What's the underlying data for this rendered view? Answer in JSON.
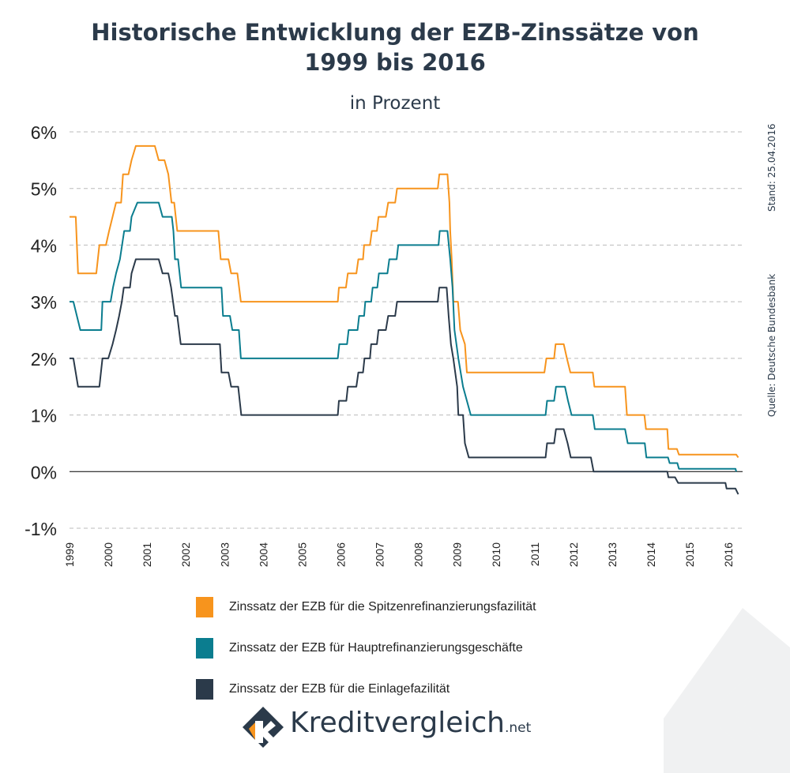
{
  "title_line1": "Historische Entwicklung der EZB-Zinssätze von",
  "title_line2": "1999 bis 2016",
  "subtitle": "in Prozent",
  "date_note": "Stand: 25.04.2016",
  "source_note": "Quelle: Deutsche Bundesbank",
  "logo_text": "Kreditvergleich",
  "logo_suffix": ".net",
  "colors": {
    "spitzen": "#f7941d",
    "haupt": "#0b7d8f",
    "einlage": "#2b3a4a",
    "grid": "#bbbbbb",
    "zero": "#000000"
  },
  "chart_data": {
    "type": "line",
    "ylim": [
      -1,
      6
    ],
    "xlim": [
      1999,
      2016.3
    ],
    "yticks": [
      -1,
      0,
      1,
      2,
      3,
      4,
      5,
      6
    ],
    "ytick_labels": [
      "-1%",
      "0%",
      "1%",
      "2%",
      "3%",
      "4%",
      "5%",
      "6%"
    ],
    "xticks": [
      1999,
      2000,
      2001,
      2002,
      2003,
      2004,
      2005,
      2006,
      2007,
      2008,
      2009,
      2010,
      2011,
      2012,
      2013,
      2014,
      2015,
      2016
    ],
    "xtick_labels": [
      "1999",
      "2000",
      "2001",
      "2002",
      "2003",
      "2004",
      "2005",
      "2006",
      "2007",
      "2008",
      "2009",
      "2010",
      "2011",
      "2012",
      "2013",
      "2014",
      "2015",
      "2016"
    ],
    "grid": "horizontal dashed",
    "legend_position": "bottom",
    "series": [
      {
        "name": "Zinssatz der EZB für die Spitzenrefinanzierungsfazilität",
        "key": "spitzen",
        "points": [
          [
            1999.0,
            4.5
          ],
          [
            1999.16,
            4.5
          ],
          [
            1999.22,
            3.5
          ],
          [
            1999.69,
            3.5
          ],
          [
            1999.77,
            4.0
          ],
          [
            1999.94,
            4.0
          ],
          [
            2000.02,
            4.25
          ],
          [
            2000.11,
            4.5
          ],
          [
            2000.2,
            4.75
          ],
          [
            2000.33,
            4.75
          ],
          [
            2000.38,
            5.25
          ],
          [
            2000.52,
            5.25
          ],
          [
            2000.6,
            5.5
          ],
          [
            2000.71,
            5.75
          ],
          [
            2001.2,
            5.75
          ],
          [
            2001.3,
            5.5
          ],
          [
            2001.45,
            5.5
          ],
          [
            2001.55,
            5.25
          ],
          [
            2001.63,
            4.75
          ],
          [
            2001.7,
            4.75
          ],
          [
            2001.78,
            4.25
          ],
          [
            2002.84,
            4.25
          ],
          [
            2002.9,
            3.75
          ],
          [
            2003.1,
            3.75
          ],
          [
            2003.17,
            3.5
          ],
          [
            2003.33,
            3.5
          ],
          [
            2003.42,
            3.0
          ],
          [
            2005.92,
            3.0
          ],
          [
            2005.95,
            3.25
          ],
          [
            2006.13,
            3.25
          ],
          [
            2006.18,
            3.5
          ],
          [
            2006.4,
            3.5
          ],
          [
            2006.45,
            3.75
          ],
          [
            2006.57,
            3.75
          ],
          [
            2006.6,
            4.0
          ],
          [
            2006.75,
            4.0
          ],
          [
            2006.8,
            4.25
          ],
          [
            2006.93,
            4.25
          ],
          [
            2006.97,
            4.5
          ],
          [
            2007.16,
            4.5
          ],
          [
            2007.22,
            4.75
          ],
          [
            2007.4,
            4.75
          ],
          [
            2007.45,
            5.0
          ],
          [
            2008.5,
            5.0
          ],
          [
            2008.54,
            5.25
          ],
          [
            2008.75,
            5.25
          ],
          [
            2008.8,
            4.75
          ],
          [
            2008.82,
            4.25
          ],
          [
            2008.86,
            3.75
          ],
          [
            2008.9,
            3.0
          ],
          [
            2009.02,
            3.0
          ],
          [
            2009.08,
            2.5
          ],
          [
            2009.2,
            2.25
          ],
          [
            2009.25,
            1.75
          ],
          [
            2011.25,
            1.75
          ],
          [
            2011.3,
            2.0
          ],
          [
            2011.5,
            2.0
          ],
          [
            2011.54,
            2.25
          ],
          [
            2011.75,
            2.25
          ],
          [
            2011.83,
            2.0
          ],
          [
            2011.92,
            1.75
          ],
          [
            2012.5,
            1.75
          ],
          [
            2012.54,
            1.5
          ],
          [
            2013.33,
            1.5
          ],
          [
            2013.38,
            1.0
          ],
          [
            2013.83,
            1.0
          ],
          [
            2013.87,
            0.75
          ],
          [
            2014.42,
            0.75
          ],
          [
            2014.45,
            0.4
          ],
          [
            2014.67,
            0.4
          ],
          [
            2014.72,
            0.3
          ],
          [
            2016.2,
            0.3
          ],
          [
            2016.25,
            0.25
          ]
        ]
      },
      {
        "name": "Zinssatz der EZB für Hauptrefinanzierungsgeschäfte",
        "key": "haupt",
        "points": [
          [
            1999.0,
            3.0
          ],
          [
            1999.1,
            3.0
          ],
          [
            1999.28,
            2.5
          ],
          [
            1999.82,
            2.5
          ],
          [
            1999.85,
            3.0
          ],
          [
            2000.06,
            3.0
          ],
          [
            2000.12,
            3.25
          ],
          [
            2000.2,
            3.5
          ],
          [
            2000.3,
            3.75
          ],
          [
            2000.41,
            4.25
          ],
          [
            2000.56,
            4.25
          ],
          [
            2000.6,
            4.5
          ],
          [
            2000.75,
            4.75
          ],
          [
            2001.3,
            4.75
          ],
          [
            2001.4,
            4.5
          ],
          [
            2001.64,
            4.5
          ],
          [
            2001.68,
            4.25
          ],
          [
            2001.72,
            3.75
          ],
          [
            2001.8,
            3.75
          ],
          [
            2001.88,
            3.25
          ],
          [
            2002.92,
            3.25
          ],
          [
            2002.96,
            2.75
          ],
          [
            2003.14,
            2.75
          ],
          [
            2003.2,
            2.5
          ],
          [
            2003.37,
            2.5
          ],
          [
            2003.42,
            2.0
          ],
          [
            2005.92,
            2.0
          ],
          [
            2005.96,
            2.25
          ],
          [
            2006.16,
            2.25
          ],
          [
            2006.2,
            2.5
          ],
          [
            2006.43,
            2.5
          ],
          [
            2006.47,
            2.75
          ],
          [
            2006.6,
            2.75
          ],
          [
            2006.63,
            3.0
          ],
          [
            2006.78,
            3.0
          ],
          [
            2006.82,
            3.25
          ],
          [
            2006.94,
            3.25
          ],
          [
            2006.98,
            3.5
          ],
          [
            2007.2,
            3.5
          ],
          [
            2007.25,
            3.75
          ],
          [
            2007.44,
            3.75
          ],
          [
            2007.48,
            4.0
          ],
          [
            2008.52,
            4.0
          ],
          [
            2008.55,
            4.25
          ],
          [
            2008.75,
            4.25
          ],
          [
            2008.82,
            3.75
          ],
          [
            2008.88,
            3.25
          ],
          [
            2008.93,
            2.5
          ],
          [
            2009.03,
            2.0
          ],
          [
            2009.15,
            1.5
          ],
          [
            2009.25,
            1.25
          ],
          [
            2009.35,
            1.0
          ],
          [
            2011.28,
            1.0
          ],
          [
            2011.32,
            1.25
          ],
          [
            2011.5,
            1.25
          ],
          [
            2011.55,
            1.5
          ],
          [
            2011.78,
            1.5
          ],
          [
            2011.86,
            1.25
          ],
          [
            2011.95,
            1.0
          ],
          [
            2012.5,
            1.0
          ],
          [
            2012.55,
            0.75
          ],
          [
            2013.33,
            0.75
          ],
          [
            2013.4,
            0.5
          ],
          [
            2013.84,
            0.5
          ],
          [
            2013.88,
            0.25
          ],
          [
            2014.44,
            0.25
          ],
          [
            2014.48,
            0.15
          ],
          [
            2014.68,
            0.15
          ],
          [
            2014.72,
            0.05
          ],
          [
            2016.18,
            0.05
          ],
          [
            2016.2,
            0.0
          ]
        ]
      },
      {
        "name": "Zinssatz der EZB für die Einlagefazilität",
        "key": "einlage",
        "points": [
          [
            1999.0,
            2.0
          ],
          [
            1999.1,
            2.0
          ],
          [
            1999.22,
            1.5
          ],
          [
            1999.77,
            1.5
          ],
          [
            1999.85,
            2.0
          ],
          [
            2000.0,
            2.0
          ],
          [
            2000.11,
            2.25
          ],
          [
            2000.2,
            2.5
          ],
          [
            2000.28,
            2.75
          ],
          [
            2000.35,
            3.0
          ],
          [
            2000.4,
            3.25
          ],
          [
            2000.56,
            3.25
          ],
          [
            2000.6,
            3.5
          ],
          [
            2000.71,
            3.75
          ],
          [
            2001.3,
            3.75
          ],
          [
            2001.4,
            3.5
          ],
          [
            2001.55,
            3.5
          ],
          [
            2001.62,
            3.25
          ],
          [
            2001.72,
            2.75
          ],
          [
            2001.78,
            2.75
          ],
          [
            2001.87,
            2.25
          ],
          [
            2002.88,
            2.25
          ],
          [
            2002.92,
            1.75
          ],
          [
            2003.1,
            1.75
          ],
          [
            2003.17,
            1.5
          ],
          [
            2003.35,
            1.5
          ],
          [
            2003.43,
            1.0
          ],
          [
            2005.92,
            1.0
          ],
          [
            2005.95,
            1.25
          ],
          [
            2006.14,
            1.25
          ],
          [
            2006.18,
            1.5
          ],
          [
            2006.4,
            1.5
          ],
          [
            2006.45,
            1.75
          ],
          [
            2006.57,
            1.75
          ],
          [
            2006.61,
            2.0
          ],
          [
            2006.75,
            2.0
          ],
          [
            2006.78,
            2.25
          ],
          [
            2006.93,
            2.25
          ],
          [
            2006.97,
            2.5
          ],
          [
            2007.16,
            2.5
          ],
          [
            2007.22,
            2.75
          ],
          [
            2007.4,
            2.75
          ],
          [
            2007.45,
            3.0
          ],
          [
            2008.5,
            3.0
          ],
          [
            2008.54,
            3.25
          ],
          [
            2008.73,
            3.25
          ],
          [
            2008.78,
            2.75
          ],
          [
            2008.84,
            2.25
          ],
          [
            2008.9,
            2.0
          ],
          [
            2009.0,
            1.5
          ],
          [
            2009.03,
            1.0
          ],
          [
            2009.15,
            1.0
          ],
          [
            2009.2,
            0.5
          ],
          [
            2009.3,
            0.25
          ],
          [
            2011.28,
            0.25
          ],
          [
            2011.32,
            0.5
          ],
          [
            2011.5,
            0.5
          ],
          [
            2011.55,
            0.75
          ],
          [
            2011.75,
            0.75
          ],
          [
            2011.85,
            0.5
          ],
          [
            2011.93,
            0.25
          ],
          [
            2012.45,
            0.25
          ],
          [
            2012.52,
            0.0
          ],
          [
            2014.42,
            0.0
          ],
          [
            2014.45,
            -0.1
          ],
          [
            2014.62,
            -0.1
          ],
          [
            2014.7,
            -0.2
          ],
          [
            2015.92,
            -0.2
          ],
          [
            2015.95,
            -0.3
          ],
          [
            2016.18,
            -0.3
          ],
          [
            2016.25,
            -0.4
          ]
        ]
      }
    ]
  }
}
